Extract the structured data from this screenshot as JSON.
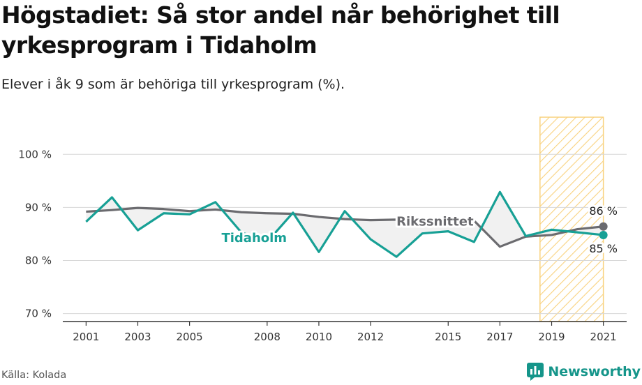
{
  "title": "Högstadiet: Så stor andel når behörighet till yrkesprogram i Tidaholm",
  "subtitle": "Elever i åk 9 som är behöriga till yrkesprogram (%).",
  "source": "Källa: Kolada",
  "brand": "Newsworthy",
  "colors": {
    "tidaholm": "#17a095",
    "riket": "#6b6b6f",
    "fill": "#f1f1f1",
    "hatch": "#f9d27e",
    "grid": "#d8d8d8",
    "brand": "#15958a"
  },
  "chart_data": {
    "type": "line",
    "x": [
      2001,
      2002,
      2003,
      2004,
      2005,
      2006,
      2007,
      2008,
      2009,
      2010,
      2011,
      2012,
      2013,
      2014,
      2015,
      2016,
      2017,
      2018,
      2019,
      2020,
      2021
    ],
    "xticks": [
      2001,
      2003,
      2005,
      2008,
      2010,
      2012,
      2015,
      2017,
      2019,
      2021
    ],
    "xtick_labels": [
      "2001",
      "2003",
      "2005",
      "2008",
      "2010",
      "2012",
      "2015",
      "2017",
      "2019",
      "2021"
    ],
    "yticks": [
      70,
      80,
      90,
      100
    ],
    "ytick_labels": [
      "70 %",
      "80 %",
      "90 %",
      "100 %"
    ],
    "ylim": [
      68.5,
      107
    ],
    "xlim": [
      2000.1,
      2021.9
    ],
    "highlight_range": [
      2018.55,
      2021
    ],
    "series": [
      {
        "name": "Tidaholm",
        "values": [
          87.3,
          91.9,
          85.7,
          88.9,
          88.7,
          91.0,
          85.3,
          83.5,
          89.0,
          81.6,
          89.3,
          84.0,
          80.7,
          85.1,
          85.5,
          83.5,
          92.9,
          84.6,
          85.8,
          85.3,
          84.8
        ]
      },
      {
        "name": "Rikssnittet",
        "values": [
          89.2,
          89.5,
          89.9,
          89.7,
          89.3,
          89.6,
          89.1,
          88.9,
          88.8,
          88.2,
          87.8,
          87.6,
          87.7,
          87.6,
          87.8,
          87.5,
          82.6,
          84.5,
          84.8,
          85.9,
          86.4
        ]
      }
    ],
    "end_labels": {
      "Rikssnittet": "86 %",
      "Tidaholm": "85 %"
    }
  }
}
